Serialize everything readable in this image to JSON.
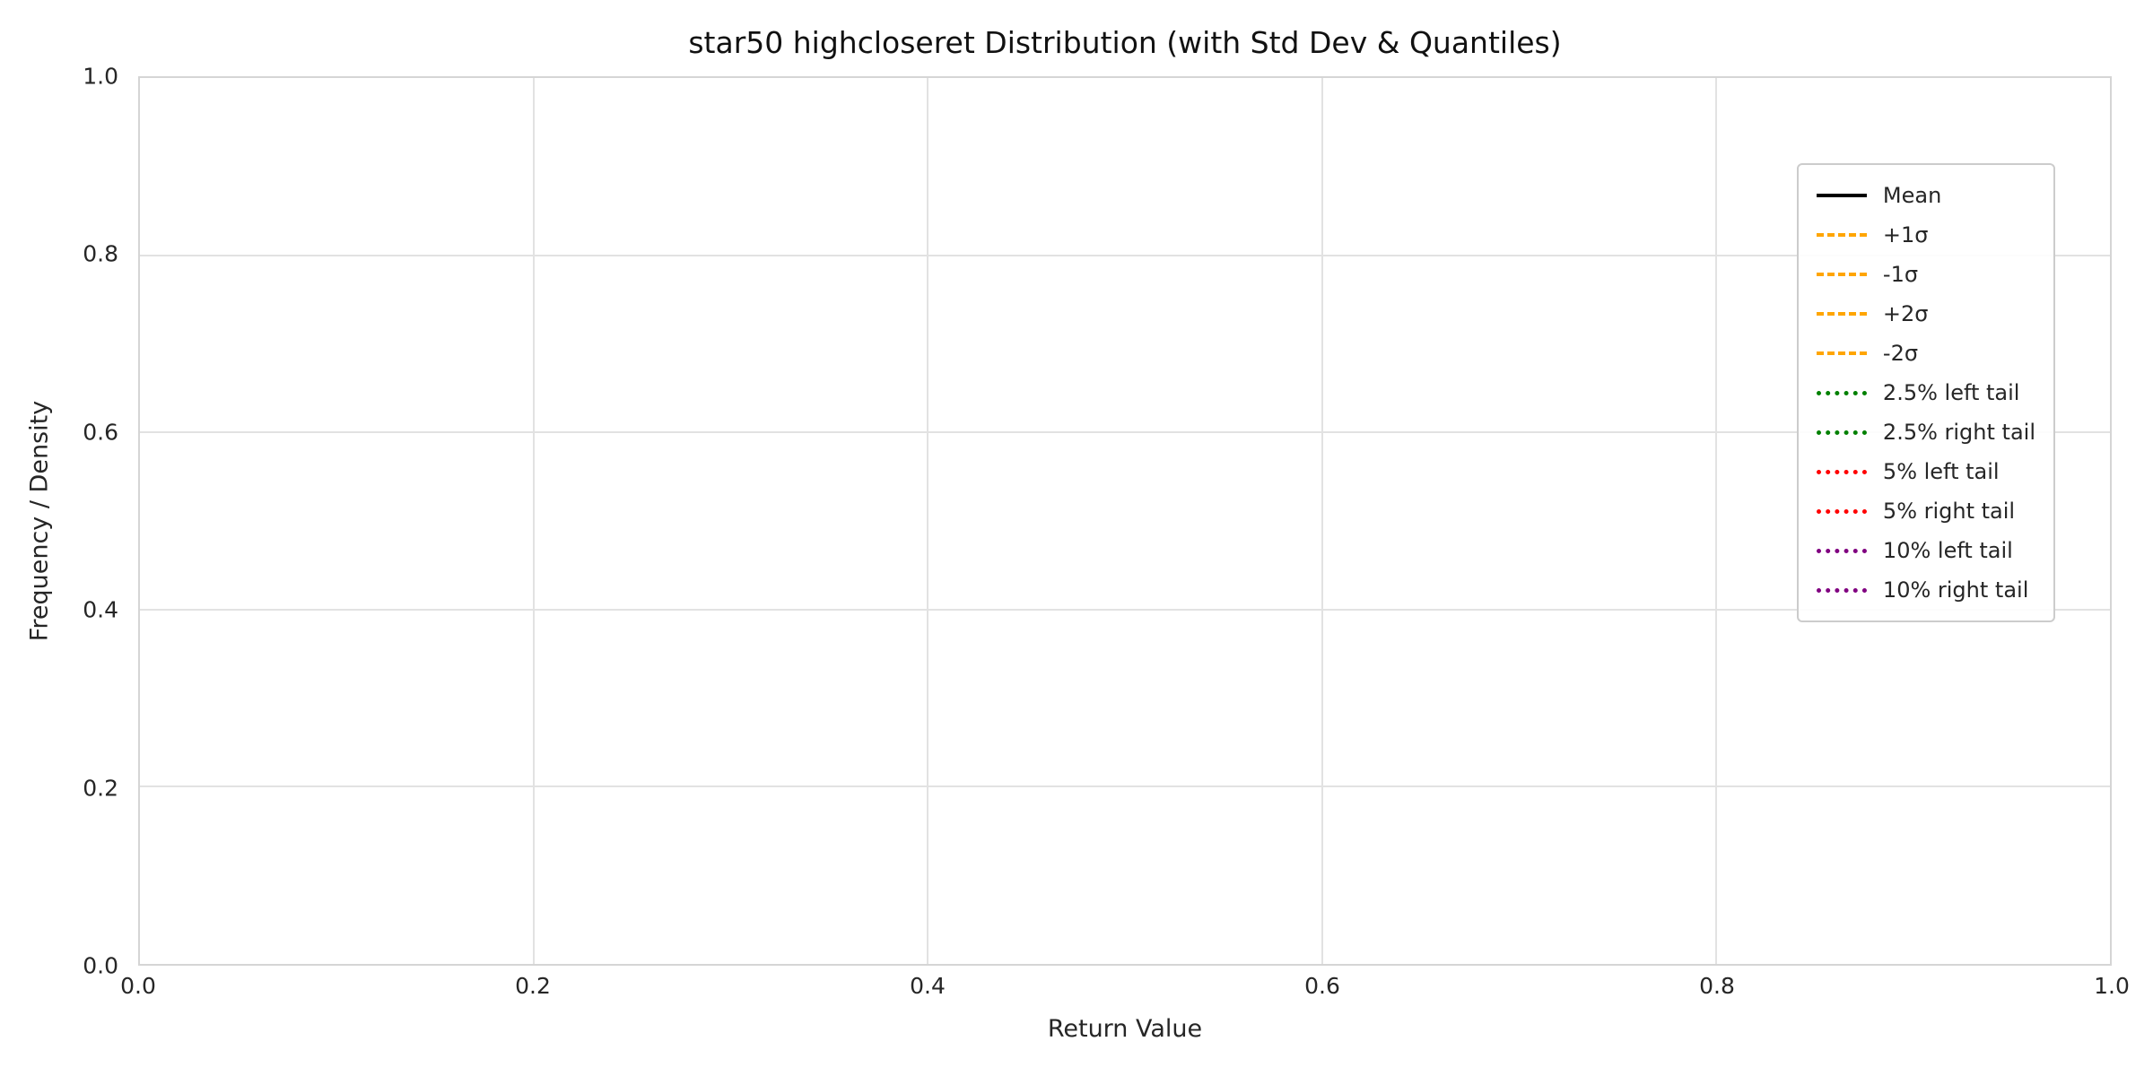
{
  "figure": {
    "title": "star50 highcloseret Distribution (with Std Dev & Quantiles)",
    "xlabel": "Return Value",
    "ylabel": "Frequency / Density"
  },
  "chart_data": {
    "type": "line",
    "title": "star50 highcloseret Distribution (with Std Dev & Quantiles)",
    "xlabel": "Return Value",
    "ylabel": "Frequency / Density",
    "xlim": [
      0.0,
      1.0
    ],
    "ylim": [
      0.0,
      1.0
    ],
    "xticks": [
      "0.0",
      "0.2",
      "0.4",
      "0.6",
      "0.8",
      "1.0"
    ],
    "yticks": [
      "0.0",
      "0.2",
      "0.4",
      "0.6",
      "0.8",
      "1.0"
    ],
    "grid": true,
    "series": [],
    "legend": {
      "position": "upper right",
      "entries": [
        {
          "label": "Mean",
          "color": "#000000",
          "style": "solid"
        },
        {
          "label": "+1σ",
          "color": "#FFA500",
          "style": "dashed"
        },
        {
          "label": "-1σ",
          "color": "#FFA500",
          "style": "dashed"
        },
        {
          "label": "+2σ",
          "color": "#FFA500",
          "style": "dashed"
        },
        {
          "label": "-2σ",
          "color": "#FFA500",
          "style": "dashed"
        },
        {
          "label": "2.5% left tail",
          "color": "#008000",
          "style": "dotted"
        },
        {
          "label": "2.5% right tail",
          "color": "#008000",
          "style": "dotted"
        },
        {
          "label": "5% left tail",
          "color": "#FF0000",
          "style": "dotted"
        },
        {
          "label": "5% right tail",
          "color": "#FF0000",
          "style": "dotted"
        },
        {
          "label": "10% left tail",
          "color": "#800080",
          "style": "dotted"
        },
        {
          "label": "10% right tail",
          "color": "#800080",
          "style": "dotted"
        }
      ]
    }
  }
}
